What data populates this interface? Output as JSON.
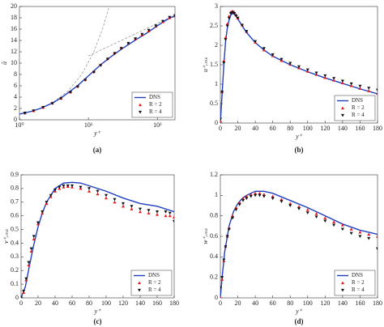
{
  "chart_data": [
    {
      "type": "line",
      "caption": "(a)",
      "xlabel": "y⁺",
      "ylabel": "ū",
      "xscale": "log",
      "xlim": [
        1,
        180
      ],
      "xticks": [
        {
          "value": 1,
          "label": "10⁰"
        },
        {
          "value": 10,
          "label": "10¹"
        },
        {
          "value": 100,
          "label": "10²"
        }
      ],
      "ylim": [
        0,
        20
      ],
      "yticks": [
        0,
        2,
        4,
        6,
        8,
        10,
        12,
        14,
        16,
        18,
        20
      ],
      "legend": "lower right",
      "series": [
        {
          "color": "#777777",
          "style": "dashed",
          "x": [
            1,
            1.5,
            2,
            3,
            5,
            8,
            12,
            16,
            20
          ],
          "values": [
            1,
            1.5,
            2,
            3,
            5,
            8,
            12,
            16,
            20
          ]
        },
        {
          "color": "#777777",
          "style": "dashed",
          "x": [
            10,
            20,
            40,
            70,
            100,
            150,
            180
          ],
          "values": [
            11.26,
            12.99,
            14.72,
            16.12,
            17.01,
            18.03,
            18.48
          ]
        },
        {
          "name": "DNS",
          "color": "#1f3fbf",
          "style": "solid",
          "x": [
            1,
            1.5,
            2,
            3,
            4,
            5,
            7,
            10,
            15,
            20,
            30,
            50,
            70,
            100,
            130,
            160,
            180
          ],
          "values": [
            1.0,
            1.5,
            2.0,
            2.95,
            3.85,
            4.7,
            6.05,
            7.75,
            9.7,
            10.9,
            12.45,
            14.2,
            15.3,
            16.6,
            17.5,
            18.1,
            18.3
          ]
        },
        {
          "name": "R = 2",
          "color": "#e8191c",
          "marker": "triangle-up",
          "x": [
            1.2,
            1.6,
            2.2,
            3,
            4,
            5.5,
            7,
            9,
            12,
            15,
            19,
            24,
            30,
            38,
            48,
            60,
            75,
            95,
            120,
            150,
            180
          ],
          "values": [
            1.2,
            1.6,
            2.2,
            2.95,
            3.8,
            4.9,
            5.9,
            7.1,
            8.5,
            9.7,
            10.8,
            11.8,
            12.7,
            13.5,
            14.3,
            15.0,
            15.7,
            16.5,
            17.3,
            18.0,
            18.3
          ]
        },
        {
          "name": "R = 4",
          "color": "#111111",
          "marker": "triangle-down",
          "x": [
            1.2,
            1.6,
            2.2,
            3,
            4,
            5.5,
            7,
            9,
            12,
            15,
            19,
            24,
            30,
            38,
            48,
            60,
            75,
            95,
            120,
            150,
            180
          ],
          "values": [
            1.2,
            1.6,
            2.2,
            2.9,
            3.75,
            4.85,
            5.85,
            7.0,
            8.4,
            9.6,
            10.7,
            11.7,
            12.6,
            13.5,
            14.3,
            15.1,
            15.8,
            16.6,
            17.4,
            18.1,
            18.4
          ]
        }
      ]
    },
    {
      "type": "line",
      "caption": "(b)",
      "xlabel": "y⁺",
      "ylabel": "u⁺ᵣₘₛ",
      "xlim": [
        0,
        180
      ],
      "xticks": [
        0,
        20,
        40,
        60,
        80,
        100,
        120,
        140,
        160,
        180
      ],
      "ylim": [
        0,
        3
      ],
      "yticks": [
        0,
        0.5,
        1,
        1.5,
        2,
        2.5,
        3
      ],
      "legend": "lower right",
      "series": [
        {
          "name": "DNS",
          "color": "#1f3fbf",
          "style": "solid",
          "x": [
            0,
            2,
            4,
            6,
            8,
            10,
            12,
            14,
            16,
            18,
            20,
            25,
            30,
            40,
            50,
            60,
            80,
            100,
            120,
            140,
            160,
            180
          ],
          "values": [
            0,
            0.75,
            1.5,
            2.1,
            2.45,
            2.65,
            2.78,
            2.82,
            2.8,
            2.75,
            2.68,
            2.5,
            2.33,
            2.07,
            1.88,
            1.72,
            1.5,
            1.32,
            1.16,
            1.02,
            0.88,
            0.75
          ]
        },
        {
          "name": "R = 2",
          "color": "#e8191c",
          "marker": "triangle-up",
          "x": [
            0,
            2,
            4,
            6,
            8,
            10,
            12,
            14,
            16,
            18,
            20,
            25,
            30,
            40,
            50,
            60,
            70,
            80,
            90,
            100,
            110,
            120,
            130,
            140,
            150,
            160,
            170,
            180
          ],
          "values": [
            0.05,
            0.8,
            1.6,
            2.2,
            2.55,
            2.75,
            2.86,
            2.88,
            2.85,
            2.78,
            2.7,
            2.52,
            2.35,
            2.08,
            1.88,
            1.73,
            1.61,
            1.51,
            1.42,
            1.33,
            1.25,
            1.17,
            1.1,
            1.03,
            0.96,
            0.89,
            0.83,
            0.76
          ]
        },
        {
          "name": "R = 4",
          "color": "#111111",
          "marker": "triangle-down",
          "x": [
            0,
            2,
            4,
            6,
            8,
            10,
            12,
            14,
            16,
            18,
            20,
            25,
            30,
            40,
            50,
            60,
            70,
            80,
            90,
            100,
            110,
            120,
            130,
            140,
            150,
            160,
            170,
            180
          ],
          "values": [
            0.1,
            0.8,
            1.55,
            2.15,
            2.5,
            2.7,
            2.82,
            2.85,
            2.82,
            2.76,
            2.7,
            2.52,
            2.36,
            2.1,
            1.92,
            1.76,
            1.64,
            1.54,
            1.45,
            1.37,
            1.29,
            1.22,
            1.15,
            1.08,
            1.01,
            0.95,
            0.9,
            0.85
          ]
        }
      ]
    },
    {
      "type": "line",
      "caption": "(c)",
      "xlabel": "y⁺",
      "ylabel": "v⁺ᵣₘₛ",
      "xlim": [
        0,
        180
      ],
      "xticks": [
        0,
        20,
        40,
        60,
        80,
        100,
        120,
        140,
        160,
        180
      ],
      "ylim": [
        0,
        0.9
      ],
      "yticks": [
        0,
        0.1,
        0.2,
        0.3,
        0.4,
        0.5,
        0.6,
        0.7,
        0.8,
        0.9
      ],
      "legend": "lower right",
      "series": [
        {
          "name": "DNS",
          "color": "#1f3fbf",
          "style": "solid",
          "x": [
            0,
            5,
            10,
            15,
            20,
            25,
            30,
            40,
            50,
            60,
            70,
            80,
            90,
            100,
            120,
            140,
            160,
            180
          ],
          "values": [
            0,
            0.08,
            0.24,
            0.39,
            0.52,
            0.62,
            0.7,
            0.8,
            0.84,
            0.845,
            0.84,
            0.82,
            0.8,
            0.78,
            0.73,
            0.69,
            0.67,
            0.63
          ]
        },
        {
          "name": "R = 2",
          "color": "#e8191c",
          "marker": "triangle-up",
          "x": [
            0,
            3,
            6,
            9,
            12,
            15,
            20,
            25,
            30,
            35,
            40,
            45,
            50,
            55,
            60,
            70,
            80,
            90,
            100,
            110,
            120,
            130,
            140,
            150,
            160,
            170,
            175,
            180
          ],
          "values": [
            0,
            0.04,
            0.13,
            0.24,
            0.34,
            0.43,
            0.54,
            0.62,
            0.69,
            0.74,
            0.78,
            0.8,
            0.81,
            0.815,
            0.81,
            0.8,
            0.78,
            0.76,
            0.73,
            0.7,
            0.67,
            0.65,
            0.63,
            0.62,
            0.61,
            0.6,
            0.6,
            0.59
          ]
        },
        {
          "name": "R = 4",
          "color": "#111111",
          "marker": "triangle-down",
          "x": [
            0,
            3,
            6,
            9,
            12,
            15,
            20,
            25,
            30,
            35,
            40,
            45,
            50,
            55,
            60,
            70,
            80,
            90,
            100,
            110,
            120,
            130,
            140,
            150,
            160,
            170,
            175,
            180
          ],
          "values": [
            0,
            0.05,
            0.14,
            0.26,
            0.36,
            0.45,
            0.55,
            0.63,
            0.7,
            0.75,
            0.79,
            0.81,
            0.82,
            0.82,
            0.82,
            0.81,
            0.8,
            0.78,
            0.75,
            0.72,
            0.69,
            0.67,
            0.65,
            0.64,
            0.63,
            0.63,
            0.62,
            0.56
          ]
        }
      ]
    },
    {
      "type": "line",
      "caption": "(d)",
      "xlabel": "y⁺",
      "ylabel": "w⁺ᵣₘₛ",
      "xlim": [
        0,
        180
      ],
      "xticks": [
        0,
        20,
        40,
        60,
        80,
        100,
        120,
        140,
        160,
        180
      ],
      "ylim": [
        0,
        1.2
      ],
      "yticks": [
        0,
        0.2,
        0.4,
        0.6,
        0.8,
        1,
        1.2
      ],
      "legend": "lower right",
      "series": [
        {
          "name": "DNS",
          "color": "#1f3fbf",
          "style": "solid",
          "x": [
            0,
            2,
            5,
            10,
            15,
            20,
            25,
            30,
            40,
            50,
            60,
            80,
            100,
            120,
            140,
            160,
            180
          ],
          "values": [
            0,
            0.2,
            0.45,
            0.7,
            0.84,
            0.92,
            0.97,
            1.0,
            1.04,
            1.04,
            1.02,
            0.95,
            0.88,
            0.8,
            0.72,
            0.66,
            0.62
          ]
        },
        {
          "name": "R = 2",
          "color": "#e8191c",
          "marker": "triangle-up",
          "x": [
            0,
            2,
            4,
            6,
            8,
            10,
            14,
            18,
            22,
            26,
            30,
            35,
            40,
            45,
            50,
            60,
            70,
            80,
            90,
            100,
            110,
            120,
            130,
            140,
            150,
            160,
            170,
            180
          ],
          "values": [
            0,
            0.18,
            0.36,
            0.5,
            0.6,
            0.68,
            0.8,
            0.88,
            0.93,
            0.97,
            0.99,
            1.01,
            1.02,
            1.02,
            1.01,
            0.99,
            0.96,
            0.92,
            0.89,
            0.86,
            0.82,
            0.78,
            0.74,
            0.71,
            0.67,
            0.64,
            0.62,
            0.6
          ]
        },
        {
          "name": "R = 4",
          "color": "#111111",
          "marker": "triangle-down",
          "x": [
            0,
            2,
            4,
            6,
            8,
            10,
            14,
            18,
            22,
            26,
            30,
            35,
            40,
            45,
            50,
            60,
            70,
            80,
            90,
            100,
            110,
            120,
            130,
            140,
            150,
            160,
            170,
            180
          ],
          "values": [
            0.1,
            0.2,
            0.37,
            0.5,
            0.6,
            0.67,
            0.78,
            0.86,
            0.91,
            0.95,
            0.97,
            0.99,
            1.0,
            1.0,
            0.99,
            0.97,
            0.94,
            0.9,
            0.87,
            0.83,
            0.79,
            0.75,
            0.71,
            0.67,
            0.63,
            0.6,
            0.58,
            0.48
          ]
        }
      ]
    }
  ]
}
